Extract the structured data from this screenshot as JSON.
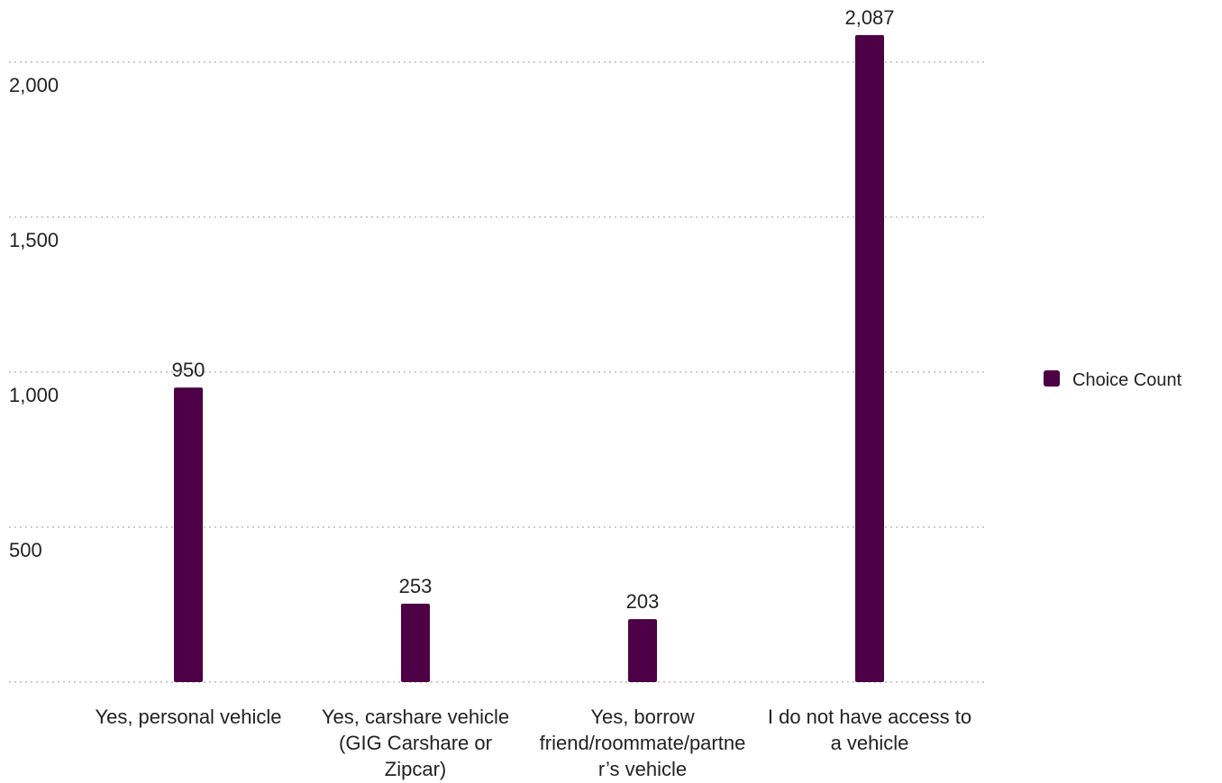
{
  "chart_data": {
    "type": "bar",
    "categories": [
      "Yes, personal vehicle",
      "Yes, carshare vehicle (GIG Carshare or Zipcar)",
      "Yes, borrow friend/roommate/partner’s vehicle",
      "I do not have access to a vehicle"
    ],
    "series": [
      {
        "name": "Choice Count",
        "color": "#4d0045",
        "values": [
          950,
          253,
          203,
          2087
        ],
        "value_labels": [
          "950",
          "253",
          "203",
          "2,087"
        ]
      }
    ],
    "ylim": [
      0,
      2200
    ],
    "yticks": [
      500,
      {
        "value": 1000,
        "label": "1,000"
      },
      {
        "value": 1500,
        "label": "1,500"
      },
      {
        "value": 2000,
        "label": "2,000"
      }
    ],
    "grid": true,
    "legend": "right"
  }
}
